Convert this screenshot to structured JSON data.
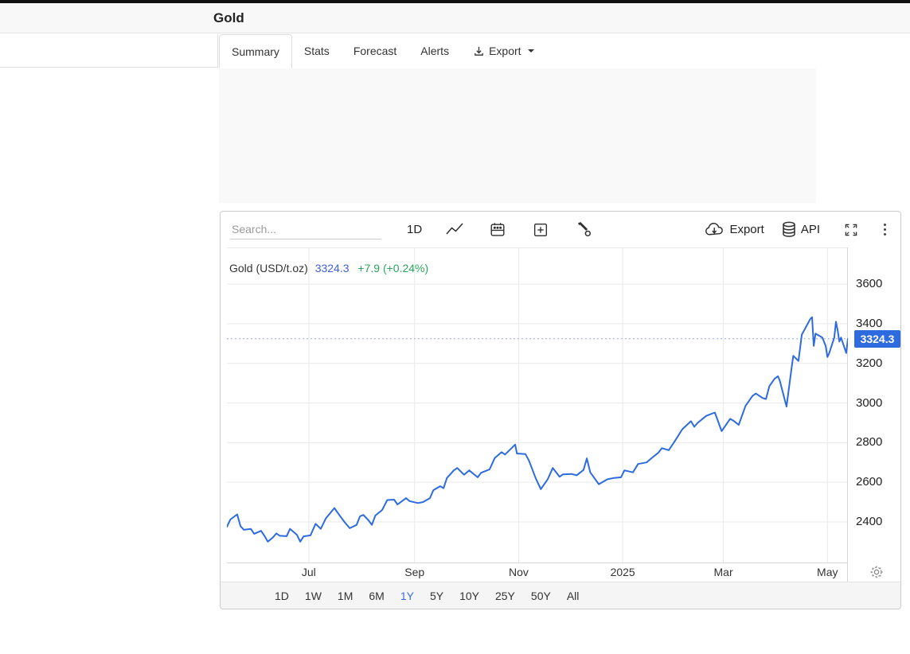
{
  "header": {
    "title": "Gold"
  },
  "tabs": [
    {
      "label": "Summary",
      "active": true
    },
    {
      "label": "Stats"
    },
    {
      "label": "Forecast"
    },
    {
      "label": "Alerts"
    },
    {
      "label": "Export",
      "download_icon": true,
      "caret": true
    }
  ],
  "chart_widget": {
    "toolbar": {
      "search_placeholder": "Search...",
      "interval_label": "1D",
      "icons": [
        "line-chart-icon",
        "calendar-icon",
        "add-indicator-icon",
        "tools-icon"
      ],
      "export_label": "Export",
      "api_label": "API"
    },
    "legend": {
      "name": "Gold (USD/t.oz)",
      "value": "3324.3",
      "change": "+7.9 (+0.24%)"
    },
    "price_badge": "3324.3",
    "range_buttons": {
      "options": [
        "1D",
        "1W",
        "1M",
        "6M",
        "1Y",
        "5Y",
        "10Y",
        "25Y",
        "50Y",
        "All"
      ],
      "active": "1Y"
    },
    "colors": {
      "line": "#2d6bdf",
      "dotted_line": "#8fa8ea",
      "badge": "#2d6bdf",
      "value_text": "#3e5fd5",
      "change_text": "#2aa55c",
      "range_active": "#3b6fd9",
      "grid": "#e9e9e9",
      "axis": "#d6d6d6"
    }
  },
  "chart_data": {
    "type": "line",
    "title": "Gold (USD/t.oz)",
    "unit": "USD/t.oz",
    "current": {
      "value": 3324.3,
      "change": "+7.9",
      "change_pct": "+0.24%"
    },
    "x_range": [
      "2024-05-14",
      "2025-05-13"
    ],
    "y_axis": {
      "min": 2195,
      "max": 3785,
      "ticks": [
        2400,
        2600,
        2800,
        3000,
        3200,
        3400,
        3600
      ]
    },
    "x_ticks": [
      {
        "label": "Jul",
        "date": "2024-07-01"
      },
      {
        "label": "Sep",
        "date": "2024-09-01"
      },
      {
        "label": "Nov",
        "date": "2024-11-01"
      },
      {
        "label": "2025",
        "date": "2025-01-01"
      },
      {
        "label": "Mar",
        "date": "2025-03-01"
      },
      {
        "label": "May",
        "date": "2025-05-01"
      }
    ],
    "series": [
      {
        "name": "Gold",
        "points": [
          [
            "2024-05-14",
            2375
          ],
          [
            "2024-05-16",
            2412
          ],
          [
            "2024-05-20",
            2438
          ],
          [
            "2024-05-22",
            2378
          ],
          [
            "2024-05-24",
            2360
          ],
          [
            "2024-05-28",
            2365
          ],
          [
            "2024-05-30",
            2340
          ],
          [
            "2024-06-03",
            2355
          ],
          [
            "2024-06-05",
            2330
          ],
          [
            "2024-06-07",
            2300
          ],
          [
            "2024-06-10",
            2322
          ],
          [
            "2024-06-12",
            2342
          ],
          [
            "2024-06-14",
            2330
          ],
          [
            "2024-06-18",
            2328
          ],
          [
            "2024-06-20",
            2365
          ],
          [
            "2024-06-24",
            2335
          ],
          [
            "2024-06-26",
            2300
          ],
          [
            "2024-06-28",
            2327
          ],
          [
            "2024-07-02",
            2332
          ],
          [
            "2024-07-05",
            2390
          ],
          [
            "2024-07-08",
            2365
          ],
          [
            "2024-07-11",
            2418
          ],
          [
            "2024-07-16",
            2470
          ],
          [
            "2024-07-18",
            2445
          ],
          [
            "2024-07-22",
            2398
          ],
          [
            "2024-07-25",
            2368
          ],
          [
            "2024-07-29",
            2385
          ],
          [
            "2024-07-31",
            2428
          ],
          [
            "2024-08-02",
            2435
          ],
          [
            "2024-08-05",
            2408
          ],
          [
            "2024-08-07",
            2385
          ],
          [
            "2024-08-09",
            2432
          ],
          [
            "2024-08-13",
            2460
          ],
          [
            "2024-08-16",
            2510
          ],
          [
            "2024-08-20",
            2512
          ],
          [
            "2024-08-22",
            2488
          ],
          [
            "2024-08-27",
            2520
          ],
          [
            "2024-08-29",
            2505
          ],
          [
            "2024-09-03",
            2495
          ],
          [
            "2024-09-06",
            2500
          ],
          [
            "2024-09-10",
            2520
          ],
          [
            "2024-09-12",
            2560
          ],
          [
            "2024-09-16",
            2580
          ],
          [
            "2024-09-18",
            2570
          ],
          [
            "2024-09-20",
            2622
          ],
          [
            "2024-09-24",
            2660
          ],
          [
            "2024-09-26",
            2672
          ],
          [
            "2024-09-30",
            2638
          ],
          [
            "2024-10-03",
            2660
          ],
          [
            "2024-10-08",
            2625
          ],
          [
            "2024-10-10",
            2648
          ],
          [
            "2024-10-15",
            2665
          ],
          [
            "2024-10-18",
            2722
          ],
          [
            "2024-10-22",
            2752
          ],
          [
            "2024-10-24",
            2740
          ],
          [
            "2024-10-30",
            2790
          ],
          [
            "2024-10-31",
            2745
          ],
          [
            "2024-11-05",
            2742
          ],
          [
            "2024-11-07",
            2710
          ],
          [
            "2024-11-11",
            2620
          ],
          [
            "2024-11-14",
            2565
          ],
          [
            "2024-11-18",
            2615
          ],
          [
            "2024-11-21",
            2672
          ],
          [
            "2024-11-25",
            2628
          ],
          [
            "2024-11-27",
            2640
          ],
          [
            "2024-12-02",
            2642
          ],
          [
            "2024-12-05",
            2635
          ],
          [
            "2024-12-09",
            2662
          ],
          [
            "2024-12-11",
            2720
          ],
          [
            "2024-12-13",
            2650
          ],
          [
            "2024-12-18",
            2590
          ],
          [
            "2024-12-23",
            2615
          ],
          [
            "2024-12-27",
            2622
          ],
          [
            "2024-12-31",
            2625
          ],
          [
            "2025-01-02",
            2660
          ],
          [
            "2025-01-07",
            2650
          ],
          [
            "2025-01-10",
            2692
          ],
          [
            "2025-01-15",
            2700
          ],
          [
            "2025-01-17",
            2715
          ],
          [
            "2025-01-22",
            2750
          ],
          [
            "2025-01-24",
            2772
          ],
          [
            "2025-01-28",
            2762
          ],
          [
            "2025-01-31",
            2800
          ],
          [
            "2025-02-05",
            2868
          ],
          [
            "2025-02-10",
            2908
          ],
          [
            "2025-02-12",
            2880
          ],
          [
            "2025-02-14",
            2900
          ],
          [
            "2025-02-19",
            2935
          ],
          [
            "2025-02-24",
            2952
          ],
          [
            "2025-02-28",
            2858
          ],
          [
            "2025-03-05",
            2920
          ],
          [
            "2025-03-07",
            2910
          ],
          [
            "2025-03-10",
            2890
          ],
          [
            "2025-03-14",
            2985
          ],
          [
            "2025-03-18",
            3035
          ],
          [
            "2025-03-20",
            3048
          ],
          [
            "2025-03-24",
            3025
          ],
          [
            "2025-03-26",
            3020
          ],
          [
            "2025-03-28",
            3085
          ],
          [
            "2025-03-31",
            3122
          ],
          [
            "2025-04-02",
            3135
          ],
          [
            "2025-04-03",
            3115
          ],
          [
            "2025-04-07",
            2982
          ],
          [
            "2025-04-10",
            3178
          ],
          [
            "2025-04-11",
            3238
          ],
          [
            "2025-04-14",
            3212
          ],
          [
            "2025-04-16",
            3345
          ],
          [
            "2025-04-21",
            3425
          ],
          [
            "2025-04-22",
            3433
          ],
          [
            "2025-04-23",
            3288
          ],
          [
            "2025-04-24",
            3350
          ],
          [
            "2025-04-28",
            3330
          ],
          [
            "2025-04-30",
            3288
          ],
          [
            "2025-05-01",
            3232
          ],
          [
            "2025-05-02",
            3250
          ],
          [
            "2025-05-05",
            3330
          ],
          [
            "2025-05-06",
            3410
          ],
          [
            "2025-05-07",
            3368
          ],
          [
            "2025-05-08",
            3310
          ],
          [
            "2025-05-09",
            3330
          ],
          [
            "2025-05-12",
            3252
          ],
          [
            "2025-05-13",
            3324.3
          ]
        ]
      }
    ],
    "grid": true,
    "legend_position": "top-left"
  }
}
